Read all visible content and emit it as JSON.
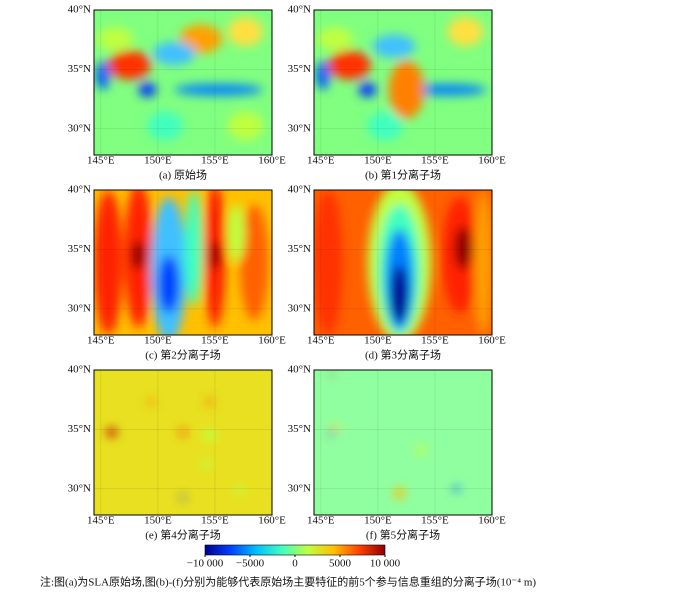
{
  "chart_data": [
    {
      "type": "heatmap",
      "title": "(a) 原始场",
      "field": "a",
      "xlim": [
        144.4,
        160
      ],
      "ylim": [
        27.8,
        40
      ],
      "xticks": [
        {
          "value": 145,
          "label": "145°E"
        },
        {
          "value": 150,
          "label": "150°E"
        },
        {
          "value": 155,
          "label": "155°E"
        },
        {
          "value": 160,
          "label": "160°E"
        }
      ],
      "yticks": [
        {
          "value": 30,
          "label": "30°N"
        },
        {
          "value": 35,
          "label": "35°N"
        },
        {
          "value": 40,
          "label": "40°N"
        }
      ]
    },
    {
      "type": "heatmap",
      "title": "(b) 第1分离子场",
      "field": "b",
      "xlim": [
        144.4,
        160
      ],
      "ylim": [
        27.8,
        40
      ],
      "xticks": [
        {
          "value": 145,
          "label": "145°E"
        },
        {
          "value": 150,
          "label": "150°E"
        },
        {
          "value": 155,
          "label": "155°E"
        },
        {
          "value": 160,
          "label": "160°E"
        }
      ],
      "yticks": [
        {
          "value": 30,
          "label": "30°N"
        },
        {
          "value": 35,
          "label": "35°N"
        },
        {
          "value": 40,
          "label": "40°N"
        }
      ]
    },
    {
      "type": "heatmap",
      "title": "(c) 第2分离子场",
      "field": "c",
      "xlim": [
        144.4,
        160
      ],
      "ylim": [
        27.8,
        40
      ],
      "xticks": [
        {
          "value": 145,
          "label": "145°E"
        },
        {
          "value": 150,
          "label": "150°E"
        },
        {
          "value": 155,
          "label": "155°E"
        },
        {
          "value": 160,
          "label": "160°E"
        }
      ],
      "yticks": [
        {
          "value": 30,
          "label": "30°N"
        },
        {
          "value": 35,
          "label": "35°N"
        },
        {
          "value": 40,
          "label": "40°N"
        }
      ]
    },
    {
      "type": "heatmap",
      "title": "(d) 第3分离子场",
      "field": "d",
      "xlim": [
        144.4,
        160
      ],
      "ylim": [
        27.8,
        40
      ],
      "xticks": [
        {
          "value": 145,
          "label": "145°E"
        },
        {
          "value": 150,
          "label": "150°E"
        },
        {
          "value": 155,
          "label": "155°E"
        },
        {
          "value": 160,
          "label": "160°E"
        }
      ],
      "yticks": [
        {
          "value": 30,
          "label": "30°N"
        },
        {
          "value": 35,
          "label": "35°N"
        },
        {
          "value": 40,
          "label": "40°N"
        }
      ]
    },
    {
      "type": "heatmap",
      "title": "(e) 第4分离子场",
      "field": "e",
      "xlim": [
        144.4,
        160
      ],
      "ylim": [
        27.8,
        40
      ],
      "xticks": [
        {
          "value": 145,
          "label": "145°E"
        },
        {
          "value": 150,
          "label": "150°E"
        },
        {
          "value": 155,
          "label": "155°E"
        },
        {
          "value": 160,
          "label": "160°E"
        }
      ],
      "yticks": [
        {
          "value": 30,
          "label": "30°N"
        },
        {
          "value": 35,
          "label": "35°N"
        },
        {
          "value": 40,
          "label": "40°N"
        }
      ]
    },
    {
      "type": "heatmap",
      "title": "(f) 第5分离子场",
      "field": "f",
      "xlim": [
        144.4,
        160
      ],
      "ylim": [
        27.8,
        40
      ],
      "xticks": [
        {
          "value": 145,
          "label": "145°E"
        },
        {
          "value": 150,
          "label": "150°E"
        },
        {
          "value": 155,
          "label": "155°E"
        },
        {
          "value": 160,
          "label": "160°E"
        }
      ],
      "yticks": [
        {
          "value": 30,
          "label": "30°N"
        },
        {
          "value": 35,
          "label": "35°N"
        },
        {
          "value": 40,
          "label": "40°N"
        }
      ]
    },
    {
      "type": "colorbar",
      "xlim": [
        -10000,
        10000
      ],
      "xticks": [
        {
          "value": -10000,
          "label": "−10 000"
        },
        {
          "value": -5000,
          "label": "−5000"
        },
        0,
        5000,
        {
          "value": 10000,
          "label": "10 000"
        }
      ],
      "colors": [
        "#00008f",
        "#0040ff",
        "#00c0ff",
        "#40ffbf",
        "#c0ff40",
        "#ffc000",
        "#ff4000",
        "#8f0000"
      ]
    }
  ],
  "note": "注:图(a)为SLA原始场,图(b)-(f)分别为能够代表原始场主要特征的前5个参与信息重组的分离子场(10⁻⁴ m)"
}
